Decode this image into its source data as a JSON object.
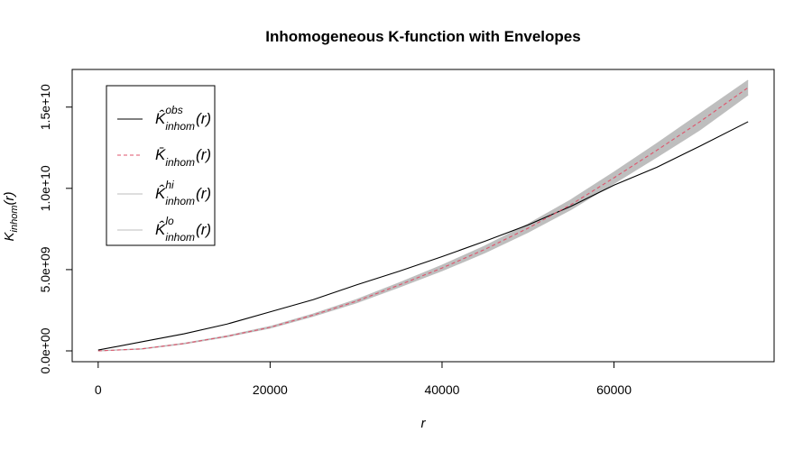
{
  "chart_data": {
    "type": "line",
    "title": "Inhomogeneous K-function with Envelopes",
    "x_label": "r",
    "y_label": {
      "base": "K",
      "sub": "inhom",
      "arg": "(r)"
    },
    "x": [
      0,
      5000,
      10000,
      15000,
      20000,
      25000,
      30000,
      35000,
      40000,
      45000,
      50000,
      55000,
      60000,
      65000,
      70000,
      75600
    ],
    "series": [
      {
        "name": {
          "base": "K̂",
          "sub": "inhom",
          "sup": "obs",
          "arg": "(r)"
        },
        "color": "#000000",
        "dash": false,
        "band": false,
        "values": [
          50000000,
          550000000,
          1050000000,
          1650000000,
          2400000000,
          3150000000,
          4050000000,
          4900000000,
          5800000000,
          6750000000,
          7750000000,
          8900000000,
          10200000000,
          11300000000,
          12600000000,
          14100000000
        ]
      },
      {
        "name": {
          "base": "K̄",
          "sub": "inhom",
          "arg": "(r)"
        },
        "color": "#df536b",
        "dash": true,
        "band": false,
        "values": [
          0,
          120000000,
          450000000,
          900000000,
          1450000000,
          2200000000,
          3050000000,
          4050000000,
          5100000000,
          6250000000,
          7550000000,
          9000000000,
          10650000000,
          12350000000,
          14100000000,
          16200000000
        ]
      },
      {
        "name": {
          "base": "K̂",
          "sub": "inhom",
          "sup": "hi",
          "arg": "(r)"
        },
        "color": "#bebebe",
        "dash": false,
        "band": true,
        "values": [
          0,
          130000000,
          470000000,
          930000000,
          1500000000,
          2270000000,
          3150000000,
          4180000000,
          5270000000,
          6460000000,
          7800000000,
          9300000000,
          11000000000,
          12770000000,
          14600000000,
          16650000000
        ]
      },
      {
        "name": {
          "base": "K̂",
          "sub": "inhom",
          "sup": "lo",
          "arg": "(r)"
        },
        "color": "#bebebe",
        "dash": false,
        "band": true,
        "values": [
          0,
          110000000,
          430000000,
          870000000,
          1400000000,
          2130000000,
          2950000000,
          3920000000,
          4930000000,
          6040000000,
          7300000000,
          8700000000,
          10300000000,
          11930000000,
          13600000000,
          15750000000
        ]
      }
    ],
    "xlim": [
      -3024,
      78624
    ],
    "ylim": [
      -666000000,
      17316000000
    ],
    "xticks": [
      0,
      20000,
      40000,
      60000
    ],
    "yticks": [
      {
        "value": 0,
        "label": "0.0e+00"
      },
      {
        "value": 5000000000,
        "label": "5.0e+09"
      },
      {
        "value": 10000000000,
        "label": "1.0e+10"
      },
      {
        "value": 15000000000,
        "label": "1.5e+10"
      }
    ],
    "legend": "top-left"
  }
}
